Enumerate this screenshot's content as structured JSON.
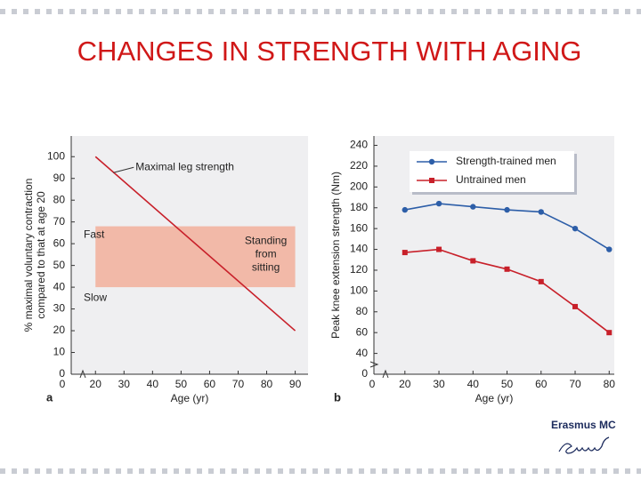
{
  "title": "CHANGES IN STRENGTH WITH AGING",
  "logo": "Erasmus MC",
  "chart_data": [
    {
      "type": "line",
      "panel_label": "a",
      "x_label": "Age (yr)",
      "y_label": [
        "% maximal voluntary contraction",
        "compared to that at age 20"
      ],
      "x": [
        20,
        90
      ],
      "series": [
        {
          "name": "Maximal leg strength",
          "color": "#c8202a",
          "values": [
            100,
            20
          ]
        }
      ],
      "shaded_range": [
        40,
        68
      ],
      "shaded_color": "#f2b9a8",
      "range_top_label": "Fast",
      "range_bottom_label": "Slow",
      "range_label": [
        "Standing",
        "from",
        "sitting"
      ],
      "xlim": [
        11.5,
        94.5
      ],
      "xticks": [
        20,
        30,
        40,
        50,
        60,
        70,
        80,
        90
      ],
      "x_break_label": "0",
      "ylim": [
        0,
        109.5
      ],
      "yticks": [
        0,
        10,
        20,
        30,
        40,
        50,
        60,
        70,
        80,
        90,
        100
      ]
    },
    {
      "type": "line",
      "panel_label": "b",
      "x_label": "Age (yr)",
      "y_label": [
        "Peak knee extension strength (Nm)"
      ],
      "x": [
        20,
        30,
        40,
        50,
        60,
        70,
        80
      ],
      "series": [
        {
          "name": "Strength-trained men",
          "color": "#2d5ea8",
          "marker": "circle",
          "values": [
            178,
            184,
            181,
            178,
            176,
            160,
            140
          ]
        },
        {
          "name": "Untrained men",
          "color": "#c8202a",
          "marker": "square",
          "values": [
            137,
            140,
            129,
            121,
            109,
            85,
            60
          ]
        }
      ],
      "legend": "upper right",
      "xlim": [
        10.9,
        81.5
      ],
      "xticks": [
        20,
        30,
        40,
        50,
        60,
        70,
        80
      ],
      "x_break_label": "0",
      "y_break_label": "0",
      "ylim": [
        20,
        249
      ],
      "yticks": [
        40,
        60,
        80,
        100,
        120,
        140,
        160,
        180,
        200,
        220,
        240
      ]
    }
  ]
}
